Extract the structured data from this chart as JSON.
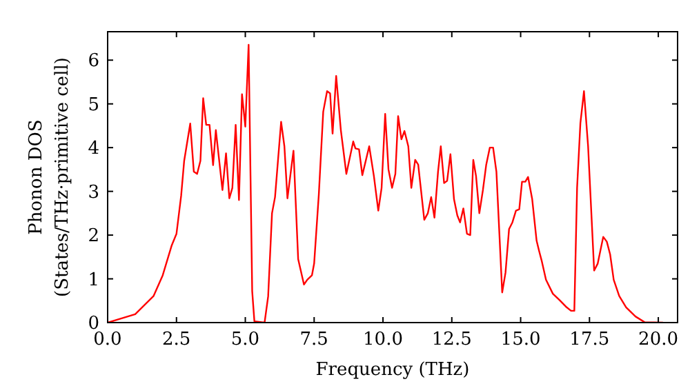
{
  "chart_data": {
    "type": "line",
    "xlabel": "Frequency (THz)",
    "ylabel": "Phonon DOS\n(States/THz·primitive cell)",
    "xlim": [
      0,
      20.7
    ],
    "ylim": [
      0,
      6.65
    ],
    "xticks": [
      {
        "value": 0,
        "label": "0.0"
      },
      {
        "value": 2.5,
        "label": "2.5"
      },
      {
        "value": 5,
        "label": "5.0"
      },
      {
        "value": 7.5,
        "label": "7.5"
      },
      {
        "value": 10,
        "label": "10.0"
      },
      {
        "value": 12.5,
        "label": "12.5"
      },
      {
        "value": 15,
        "label": "15.0"
      },
      {
        "value": 17.5,
        "label": "17.5"
      },
      {
        "value": 20,
        "label": "20.0"
      }
    ],
    "yticks": [
      0,
      1,
      2,
      3,
      4,
      5,
      6
    ],
    "grid": false,
    "line_style": "solid",
    "marker": "none",
    "series": [
      {
        "color": "#ff0000",
        "x": [
          0,
          1,
          1.67,
          2,
          2.33,
          2.5,
          2.67,
          2.78,
          3,
          3.13,
          3.25,
          3.37,
          3.47,
          3.58,
          3.7,
          3.83,
          3.93,
          4.17,
          4.3,
          4.42,
          4.53,
          4.65,
          4.77,
          4.88,
          5,
          5.12,
          5.25,
          5.33,
          5.7,
          5.83,
          5.97,
          6.08,
          6.3,
          6.42,
          6.53,
          6.75,
          6.92,
          7.13,
          7.25,
          7.42,
          7.5,
          7.67,
          7.83,
          7.97,
          8.08,
          8.17,
          8.3,
          8.47,
          8.67,
          8.92,
          9,
          9.13,
          9.25,
          9.5,
          9.67,
          9.83,
          9.95,
          10.08,
          10.2,
          10.33,
          10.45,
          10.55,
          10.67,
          10.78,
          10.92,
          11.03,
          11.17,
          11.28,
          11.5,
          11.63,
          11.75,
          11.87,
          12,
          12.1,
          12.22,
          12.33,
          12.45,
          12.58,
          12.7,
          12.8,
          12.92,
          13.05,
          13.17,
          13.28,
          13.38,
          13.5,
          13.63,
          13.75,
          13.88,
          14,
          14.12,
          14.33,
          14.45,
          14.58,
          14.7,
          14.83,
          14.95,
          15.05,
          15.17,
          15.27,
          15.42,
          15.58,
          15.67,
          15.77,
          15.92,
          16.17,
          16.42,
          16.67,
          16.83,
          16.95,
          17.05,
          17.17,
          17.3,
          17.45,
          17.67,
          17.8,
          18,
          18.13,
          18.25,
          18.38,
          18.58,
          18.83,
          19.17,
          19.5,
          20.17
        ],
        "values": [
          0,
          0.19,
          0.61,
          1.08,
          1.77,
          2.03,
          2.9,
          3.7,
          4.55,
          3.45,
          3.4,
          3.7,
          5.13,
          4.52,
          4.52,
          3.6,
          4.4,
          3.03,
          3.87,
          2.84,
          3.08,
          4.52,
          2.8,
          5.22,
          4.48,
          6.35,
          0.72,
          0.03,
          0,
          0.6,
          2.5,
          2.87,
          4.59,
          4.03,
          2.84,
          3.93,
          1.45,
          0.87,
          0.98,
          1.08,
          1.35,
          2.93,
          4.82,
          5.29,
          5.24,
          4.32,
          5.64,
          4.4,
          3.4,
          4.14,
          3.98,
          3.96,
          3.37,
          4.03,
          3.35,
          2.56,
          3.08,
          4.77,
          3.5,
          3.08,
          3.4,
          4.72,
          4.19,
          4.38,
          4.03,
          3.08,
          3.72,
          3.61,
          2.35,
          2.5,
          2.87,
          2.4,
          3.45,
          4.03,
          3.19,
          3.24,
          3.85,
          2.82,
          2.45,
          2.29,
          2.61,
          2.03,
          2,
          3.72,
          3.35,
          2.5,
          3.03,
          3.61,
          4,
          4,
          3.45,
          0.69,
          1.14,
          2.14,
          2.29,
          2.56,
          2.59,
          3.22,
          3.22,
          3.33,
          2.82,
          1.87,
          1.64,
          1.4,
          0.98,
          0.66,
          0.51,
          0.35,
          0.27,
          0.27,
          3.08,
          4.56,
          5.29,
          4.03,
          1.19,
          1.35,
          1.96,
          1.85,
          1.56,
          0.98,
          0.61,
          0.35,
          0.14,
          0.01,
          0
        ]
      }
    ]
  }
}
